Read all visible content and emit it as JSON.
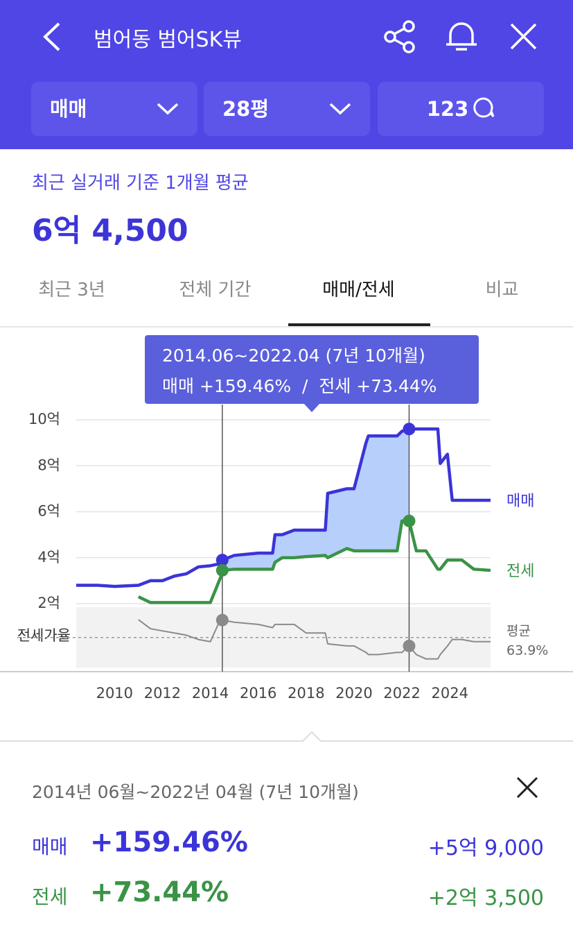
{
  "header": {
    "title": "범어동 범어SK뷰"
  },
  "filters": [
    "매매",
    "28평",
    "123"
  ],
  "summary": {
    "label": "최근 실거래 기준 1개월 평균",
    "price": "6억 4,500"
  },
  "tabs": [
    "최근 3년",
    "전체 기간",
    "매매/전세",
    "비교"
  ],
  "active_tab": 2,
  "tooltip": {
    "period": "2014.06~2022.04 (7년 10개월)",
    "text": "매매 +159.46%  /  전세 +73.44%"
  },
  "chart_data": {
    "type": "line",
    "x": [
      2008.4,
      2009.3,
      2010,
      2011,
      2011.5,
      2012,
      2012.5,
      2013,
      2013.5,
      2014.0,
      2014.45,
      2014.5,
      2015,
      2016,
      2016.6,
      2016.7,
      2017,
      2017.5,
      2018,
      2018.8,
      2018.9,
      2019.7,
      2020,
      2020.5,
      2020.6,
      2021,
      2021.8,
      2022.0,
      2022.3,
      2022.6,
      2023,
      2023.5,
      2023.6,
      2023.9,
      2024.1,
      2024.5,
      2025,
      2025.7
    ],
    "series": [
      {
        "name": "매매",
        "color": "#3b34d8",
        "values": [
          2.8,
          2.8,
          2.75,
          2.8,
          3.0,
          3.0,
          3.2,
          3.3,
          3.6,
          3.65,
          3.75,
          3.9,
          4.1,
          4.2,
          4.2,
          5.0,
          5.0,
          5.2,
          5.2,
          5.2,
          6.8,
          7.0,
          7.0,
          9.0,
          9.3,
          9.3,
          9.3,
          9.5,
          9.6,
          9.6,
          9.6,
          9.6,
          8.1,
          8.5,
          6.5,
          6.5,
          6.5,
          6.5
        ]
      },
      {
        "name": "전세",
        "color": "#3a9346",
        "values": [
          null,
          null,
          null,
          2.3,
          2.05,
          2.05,
          2.05,
          2.05,
          2.05,
          2.05,
          3.2,
          3.45,
          3.5,
          3.5,
          3.5,
          3.8,
          4.0,
          4.0,
          4.05,
          4.1,
          4.0,
          4.4,
          4.3,
          4.3,
          4.3,
          4.3,
          4.3,
          5.6,
          5.6,
          4.3,
          4.3,
          3.5,
          3.5,
          3.9,
          3.9,
          3.9,
          3.5,
          3.45
        ]
      },
      {
        "name": "전세가율",
        "color": "#8a8a8a",
        "axis": "y2",
        "values": [
          null,
          null,
          null,
          72.2,
          68,
          67,
          66,
          65,
          63,
          62,
          73,
          72,
          71,
          70,
          68.5,
          70,
          70,
          70,
          66,
          66,
          61,
          60,
          60,
          57,
          56,
          56,
          57,
          57,
          60,
          56,
          54,
          54,
          56,
          60,
          63,
          63,
          62,
          62
        ]
      }
    ],
    "xlim": [
      2008.4,
      2025.7
    ],
    "xticks": [
      2010,
      2012,
      2014,
      2016,
      2018,
      2020,
      2022,
      2024
    ],
    "ylim": [
      2,
      10
    ],
    "yticks": [
      {
        "value": 2,
        "label": "2억"
      },
      {
        "value": 4,
        "label": "4억"
      },
      {
        "value": 6,
        "label": "6억"
      },
      {
        "value": 8,
        "label": "8억"
      },
      {
        "value": 10,
        "label": "10억"
      }
    ],
    "y2lim": [
      50,
      78
    ],
    "grid": true,
    "range": [
      2014.5,
      2022.3
    ],
    "average": {
      "label": "평균",
      "value": 63.9,
      "value_label": "63.9%"
    }
  },
  "detail": {
    "period": "2014년 06월~2022년 04월 (7년 10개월)",
    "rows": [
      {
        "label": "매매",
        "percent": "+159.46%",
        "amount": "+5억 9,000"
      },
      {
        "label": "전세",
        "percent": "+73.44%",
        "amount": "+2억 3,500"
      }
    ]
  }
}
